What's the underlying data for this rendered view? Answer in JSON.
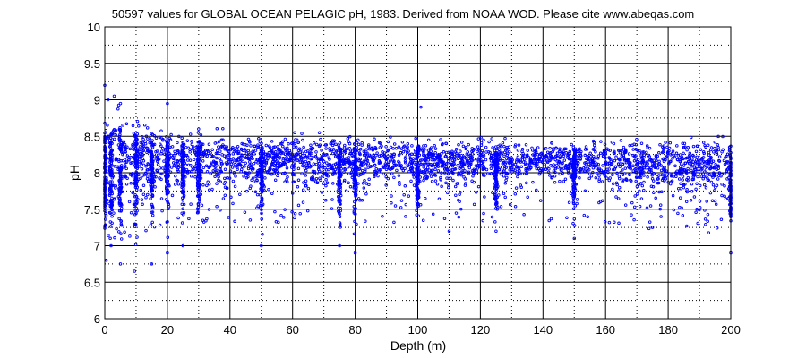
{
  "chart_data": {
    "type": "scatter",
    "title": "50597 values for GLOBAL OCEAN PELAGIC pH, 1983.  Derived from NOAA WOD. Please cite www.abeqas.com",
    "xlabel": "Depth (m)",
    "ylabel": "pH",
    "xlim": [
      0,
      200
    ],
    "ylim": [
      6,
      10
    ],
    "xticks": [
      0,
      20,
      40,
      60,
      80,
      100,
      120,
      140,
      160,
      180,
      200
    ],
    "yticks": [
      6,
      6.5,
      7,
      7.5,
      8,
      8.5,
      9,
      9.5,
      10
    ],
    "grid": "major solid, minor dotted",
    "marker_color": "#0000ff",
    "series": [
      {
        "core_band": [
          {
            "x": 0,
            "y_low": 7.6,
            "y_high": 8.7
          },
          {
            "x": 20,
            "y_low": 7.9,
            "y_high": 8.5
          },
          {
            "x": 50,
            "y_low": 7.9,
            "y_high": 8.45
          },
          {
            "x": 100,
            "y_low": 7.9,
            "y_high": 8.4
          },
          {
            "x": 150,
            "y_low": 7.95,
            "y_high": 8.35
          },
          {
            "x": 200,
            "y_low": 7.7,
            "y_high": 8.4
          }
        ],
        "outliers": [
          {
            "x": 0,
            "y": 9.2
          },
          {
            "x": 0.5,
            "y": 6.8
          },
          {
            "x": 1,
            "y": 9.0
          },
          {
            "x": 2,
            "y": 7.0
          },
          {
            "x": 3,
            "y": 9.05
          },
          {
            "x": 5,
            "y": 8.95
          },
          {
            "x": 5,
            "y": 6.75
          },
          {
            "x": 9.5,
            "y": 6.65
          },
          {
            "x": 15,
            "y": 6.75
          },
          {
            "x": 20,
            "y": 8.95
          },
          {
            "x": 20,
            "y": 6.9
          },
          {
            "x": 25,
            "y": 7.0
          },
          {
            "x": 30,
            "y": 8.6
          },
          {
            "x": 50,
            "y": 7.0
          },
          {
            "x": 75,
            "y": 7.0
          },
          {
            "x": 80,
            "y": 6.9
          },
          {
            "x": 101,
            "y": 8.9
          },
          {
            "x": 110,
            "y": 7.2
          },
          {
            "x": 125,
            "y": 7.2
          },
          {
            "x": 150,
            "y": 7.1
          },
          {
            "x": 175,
            "y": 7.25
          },
          {
            "x": 200,
            "y": 6.9
          }
        ],
        "dense_columns": [
          0,
          2,
          5,
          10,
          15,
          20,
          25,
          30,
          50,
          75,
          80,
          100,
          125,
          150,
          200
        ]
      }
    ]
  }
}
